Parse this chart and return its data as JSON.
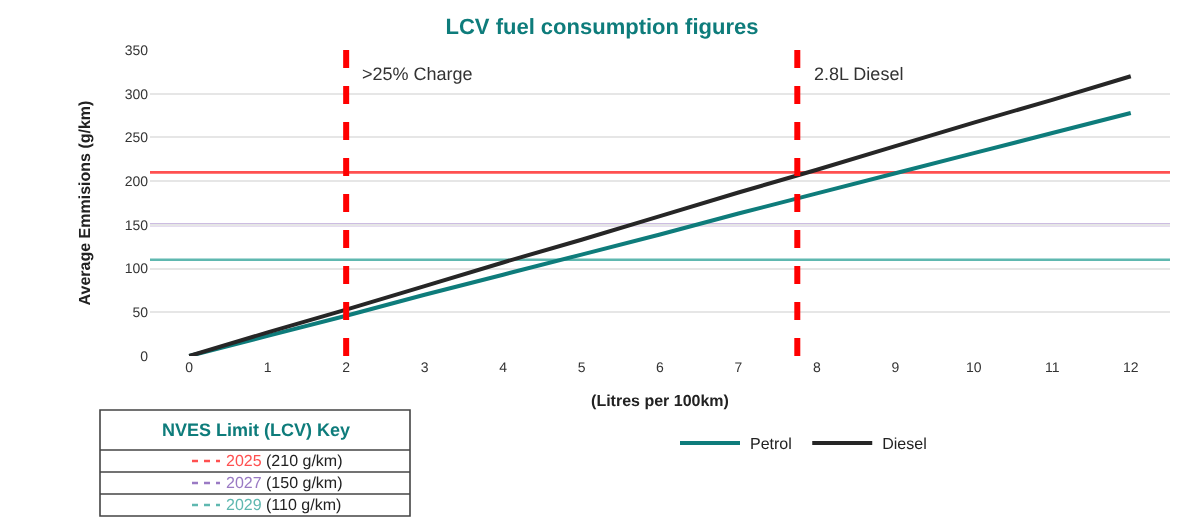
{
  "chart_data": {
    "type": "line",
    "title": "LCV fuel consumption figures",
    "xlabel": "(Litres per 100km)",
    "ylabel": "Average Emmisions (g/km)",
    "x": [
      0,
      1,
      2,
      3,
      4,
      5,
      6,
      7,
      8,
      9,
      10,
      11,
      12
    ],
    "series": [
      {
        "name": "Petrol",
        "color": "#0e7c7b",
        "values": [
          0,
          23,
          46,
          70,
          93,
          116,
          139,
          163,
          186,
          209,
          232,
          255,
          278
        ]
      },
      {
        "name": "Diesel",
        "color": "#262626",
        "values": [
          0,
          27,
          53,
          80,
          107,
          133,
          160,
          187,
          213,
          240,
          267,
          293,
          320
        ]
      }
    ],
    "xlim": [
      -0.5,
      12.5
    ],
    "xticks": [
      0,
      1,
      2,
      3,
      4,
      5,
      6,
      7,
      8,
      9,
      10,
      11,
      12
    ],
    "ylim": [
      0,
      350
    ],
    "yticks": [
      0,
      50,
      100,
      150,
      200,
      250,
      300,
      350
    ],
    "grid": "y",
    "legend": "bottom",
    "marker": "none",
    "line_style": "solid",
    "ref_lines": [
      {
        "axis": "x",
        "value": 2,
        "label": ">25% Charge",
        "color": "#ff0000",
        "line_style": "dashed"
      },
      {
        "axis": "x",
        "value": 7.75,
        "label": "2.8L Diesel",
        "color": "#ff0000",
        "line_style": "dashed"
      },
      {
        "axis": "y",
        "value": 210,
        "label": "2025 (210 g/km)",
        "color": "#ff5050",
        "line_style": "solid"
      },
      {
        "axis": "y",
        "value": 150,
        "label": "2027 (150 g/km)",
        "color": "#9a7ac4",
        "line_style": "solid"
      },
      {
        "axis": "y",
        "value": 110,
        "label": "2029 (110 g/km)",
        "color": "#5fb8b0",
        "line_style": "solid"
      }
    ],
    "annotations": [
      "NVES Limit (LCV) Key"
    ]
  }
}
